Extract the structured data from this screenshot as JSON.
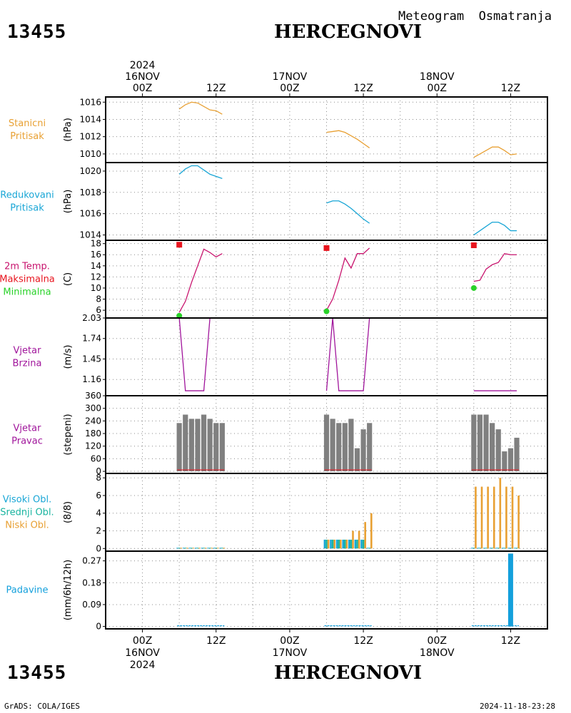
{
  "header": {
    "station_id": "13455",
    "station_name": "HERCEGNOVI",
    "meteogram_title": "Meteogram  Osmatranja"
  },
  "footer": {
    "station_id": "13455",
    "station_name": "HERCEGNOVI",
    "credit": "GrADS: COLA/IGES",
    "timestamp": "2024-11-18-23:28"
  },
  "time_axis": {
    "year": "2024",
    "date_labels": [
      "16NOV",
      "17NOV",
      "18NOV"
    ],
    "hour_labels": [
      "00Z",
      "12Z",
      "00Z",
      "12Z",
      "00Z",
      "12Z"
    ],
    "range_hours": [
      -6,
      66
    ]
  },
  "colors": {
    "station_pressure": "#e8a033",
    "reduced_pressure": "#19a6d6",
    "temperature": "#c8146e",
    "max_marker": "#e8141e",
    "min_marker": "#28d228",
    "wind": "#a0149b",
    "wind_dir_bars": "#808080",
    "high_clouds": "#19a6d6",
    "mid_clouds": "#19b4a0",
    "low_clouds": "#e8a033",
    "precip": "#14a0dc"
  },
  "chart_data": [
    {
      "type": "line",
      "panel": "stanicni-pritisak",
      "labels": [
        "Stanicni",
        "Pritisak"
      ],
      "ylabel": "(hPa)",
      "ylim": [
        1009,
        1016.6
      ],
      "ticks": [
        1010,
        1012,
        1014,
        1016
      ],
      "series": [
        {
          "x": [
            6,
            7,
            8,
            9,
            10,
            11,
            12,
            13
          ],
          "y": [
            1015.2,
            1015.7,
            1016.0,
            1015.9,
            1015.5,
            1015.1,
            1015.0,
            1014.6
          ]
        },
        {
          "x": [
            30,
            31,
            32,
            33,
            34,
            35,
            36,
            37
          ],
          "y": [
            1012.5,
            1012.6,
            1012.7,
            1012.5,
            1012.1,
            1011.7,
            1011.2,
            1010.7
          ]
        },
        {
          "x": [
            54,
            55,
            56,
            57,
            58,
            59,
            60,
            61
          ],
          "y": [
            1009.6,
            1010.0,
            1010.4,
            1010.8,
            1010.8,
            1010.4,
            1009.9,
            1010.0
          ]
        }
      ]
    },
    {
      "type": "line",
      "panel": "redukovani-pritisak",
      "labels": [
        "Redukovani",
        "Pritisak"
      ],
      "ylabel": "(hPa)",
      "ylim": [
        1013.5,
        1020.8
      ],
      "ticks": [
        1014,
        1016,
        1018,
        1020
      ],
      "series": [
        {
          "x": [
            6,
            7,
            8,
            9,
            10,
            11,
            12,
            13
          ],
          "y": [
            1019.7,
            1020.2,
            1020.5,
            1020.5,
            1020.1,
            1019.7,
            1019.5,
            1019.3
          ]
        },
        {
          "x": [
            30,
            31,
            32,
            33,
            34,
            35,
            36,
            37
          ],
          "y": [
            1017.0,
            1017.2,
            1017.2,
            1016.9,
            1016.5,
            1016.0,
            1015.5,
            1015.1
          ]
        },
        {
          "x": [
            54,
            55,
            56,
            57,
            58,
            59,
            60,
            61
          ],
          "y": [
            1014.0,
            1014.4,
            1014.8,
            1015.2,
            1015.2,
            1014.9,
            1014.4,
            1014.4
          ]
        }
      ]
    },
    {
      "type": "line",
      "panel": "temperatura",
      "labels": [
        "2m Temp.",
        "Maksimalna",
        "Minimalna"
      ],
      "ylabel": "(C)",
      "ylim": [
        4.6,
        18.6
      ],
      "ticks": [
        6,
        8,
        10,
        12,
        14,
        16,
        18
      ],
      "series": [
        {
          "x": [
            6,
            7,
            8,
            9,
            10,
            11,
            12,
            13
          ],
          "y": [
            5.6,
            7.6,
            11.0,
            14.0,
            17.0,
            16.4,
            15.6,
            16.2
          ]
        },
        {
          "x": [
            30,
            31,
            32,
            33,
            34,
            35,
            36,
            37
          ],
          "y": [
            6.0,
            8.0,
            11.4,
            15.4,
            13.6,
            16.2,
            16.2,
            17.2
          ]
        },
        {
          "x": [
            54,
            55,
            56,
            57,
            58,
            59,
            60,
            61
          ],
          "y": [
            11.2,
            11.4,
            13.4,
            14.2,
            14.6,
            16.2,
            16.0,
            16.0
          ]
        }
      ],
      "maximum": {
        "x": [
          6,
          30,
          54
        ],
        "y": [
          17.8,
          17.2,
          17.7
        ]
      },
      "minimum": {
        "x": [
          6,
          30,
          54
        ],
        "y": [
          5.0,
          5.8,
          10.0
        ]
      }
    },
    {
      "type": "line",
      "panel": "vjetar-brzina",
      "labels": [
        "Vjetar",
        "Brzina"
      ],
      "ylabel": "(m/s)",
      "ylim": [
        0.93,
        2.03
      ],
      "ticks": [
        1.16,
        1.45,
        1.74,
        2.03
      ],
      "tick_labels": [
        "1.16",
        "1.45",
        "1.74",
        "2.03"
      ],
      "series": [
        {
          "x": [
            6,
            7,
            8,
            9,
            10,
            11,
            12,
            13
          ],
          "y": [
            2.03,
            1.0,
            1.0,
            1.0,
            1.0,
            2.03,
            2.03,
            2.03
          ]
        },
        {
          "x": [
            30,
            31,
            32,
            33,
            34,
            35,
            36,
            37
          ],
          "y": [
            1.0,
            2.03,
            1.0,
            1.0,
            1.0,
            1.0,
            1.0,
            2.03
          ]
        },
        {
          "x": [
            54,
            55,
            56,
            57,
            58,
            59,
            60,
            61
          ],
          "y": [
            1.0,
            1.0,
            1.0,
            1.0,
            1.0,
            1.0,
            1.0,
            1.0
          ]
        }
      ]
    },
    {
      "type": "bar",
      "panel": "vjetar-pravac",
      "labels": [
        "Vjetar",
        "Pravac"
      ],
      "ylabel": "(stepeni)",
      "ylim": [
        -10,
        360
      ],
      "ticks": [
        0,
        60,
        120,
        180,
        240,
        300,
        360
      ],
      "x": [
        6,
        7,
        8,
        9,
        10,
        11,
        12,
        13,
        30,
        31,
        32,
        33,
        34,
        35,
        36,
        37,
        54,
        55,
        56,
        57,
        58,
        59,
        60,
        61
      ],
      "values": [
        230,
        270,
        250,
        250,
        270,
        250,
        230,
        230,
        270,
        250,
        230,
        230,
        250,
        110,
        200,
        230,
        270,
        270,
        270,
        230,
        200,
        95,
        110,
        160
      ]
    },
    {
      "type": "bar",
      "panel": "oblacnost",
      "labels": [
        "Visoki Obl.",
        "Srednji Obl.",
        "Niski Obl."
      ],
      "ylabel": "(8/8)",
      "ylim": [
        -0.3,
        8.5
      ],
      "ticks": [
        0,
        2,
        4,
        6,
        8
      ],
      "x": [
        6,
        7,
        8,
        9,
        10,
        11,
        12,
        13,
        30,
        31,
        32,
        33,
        34,
        35,
        36,
        37,
        54,
        55,
        56,
        57,
        58,
        59,
        60,
        61
      ],
      "series": [
        {
          "name": "Visoki Obl.",
          "values": [
            0,
            0,
            0,
            0,
            0,
            0,
            0,
            0,
            1,
            1,
            1,
            1,
            1,
            1,
            1,
            0,
            0,
            0,
            0,
            0,
            0,
            0,
            0,
            0
          ]
        },
        {
          "name": "Srednji Obl.",
          "values": [
            0,
            0,
            0,
            0,
            0,
            0,
            0,
            0,
            1,
            1,
            1,
            1,
            1,
            1,
            1,
            0,
            0,
            0,
            0,
            0,
            0,
            0,
            0,
            0
          ]
        },
        {
          "name": "Niski Obl.",
          "values": [
            0,
            0,
            0,
            0,
            0,
            0,
            0,
            0,
            1,
            1,
            1,
            1,
            2,
            2,
            3,
            4,
            7,
            7,
            7,
            7,
            8,
            7,
            7,
            6
          ]
        }
      ]
    },
    {
      "type": "bar",
      "panel": "padavine",
      "labels": [
        "Padavine"
      ],
      "ylabel": "(mm/6h/12h)",
      "ylim": [
        -0.01,
        0.31
      ],
      "ticks": [
        0,
        0.09,
        0.18,
        0.27
      ],
      "tick_labels": [
        "0",
        "0.09",
        "0.18",
        "0.27"
      ],
      "x": [
        6,
        7,
        8,
        9,
        10,
        11,
        12,
        13,
        30,
        31,
        32,
        33,
        34,
        35,
        36,
        37,
        54,
        55,
        56,
        57,
        58,
        59,
        60,
        61
      ],
      "values": [
        0,
        0,
        0,
        0,
        0,
        0,
        0,
        0,
        0,
        0,
        0,
        0,
        0,
        0,
        0,
        0,
        0,
        0,
        0,
        0,
        0,
        0,
        0.3,
        0
      ]
    }
  ]
}
